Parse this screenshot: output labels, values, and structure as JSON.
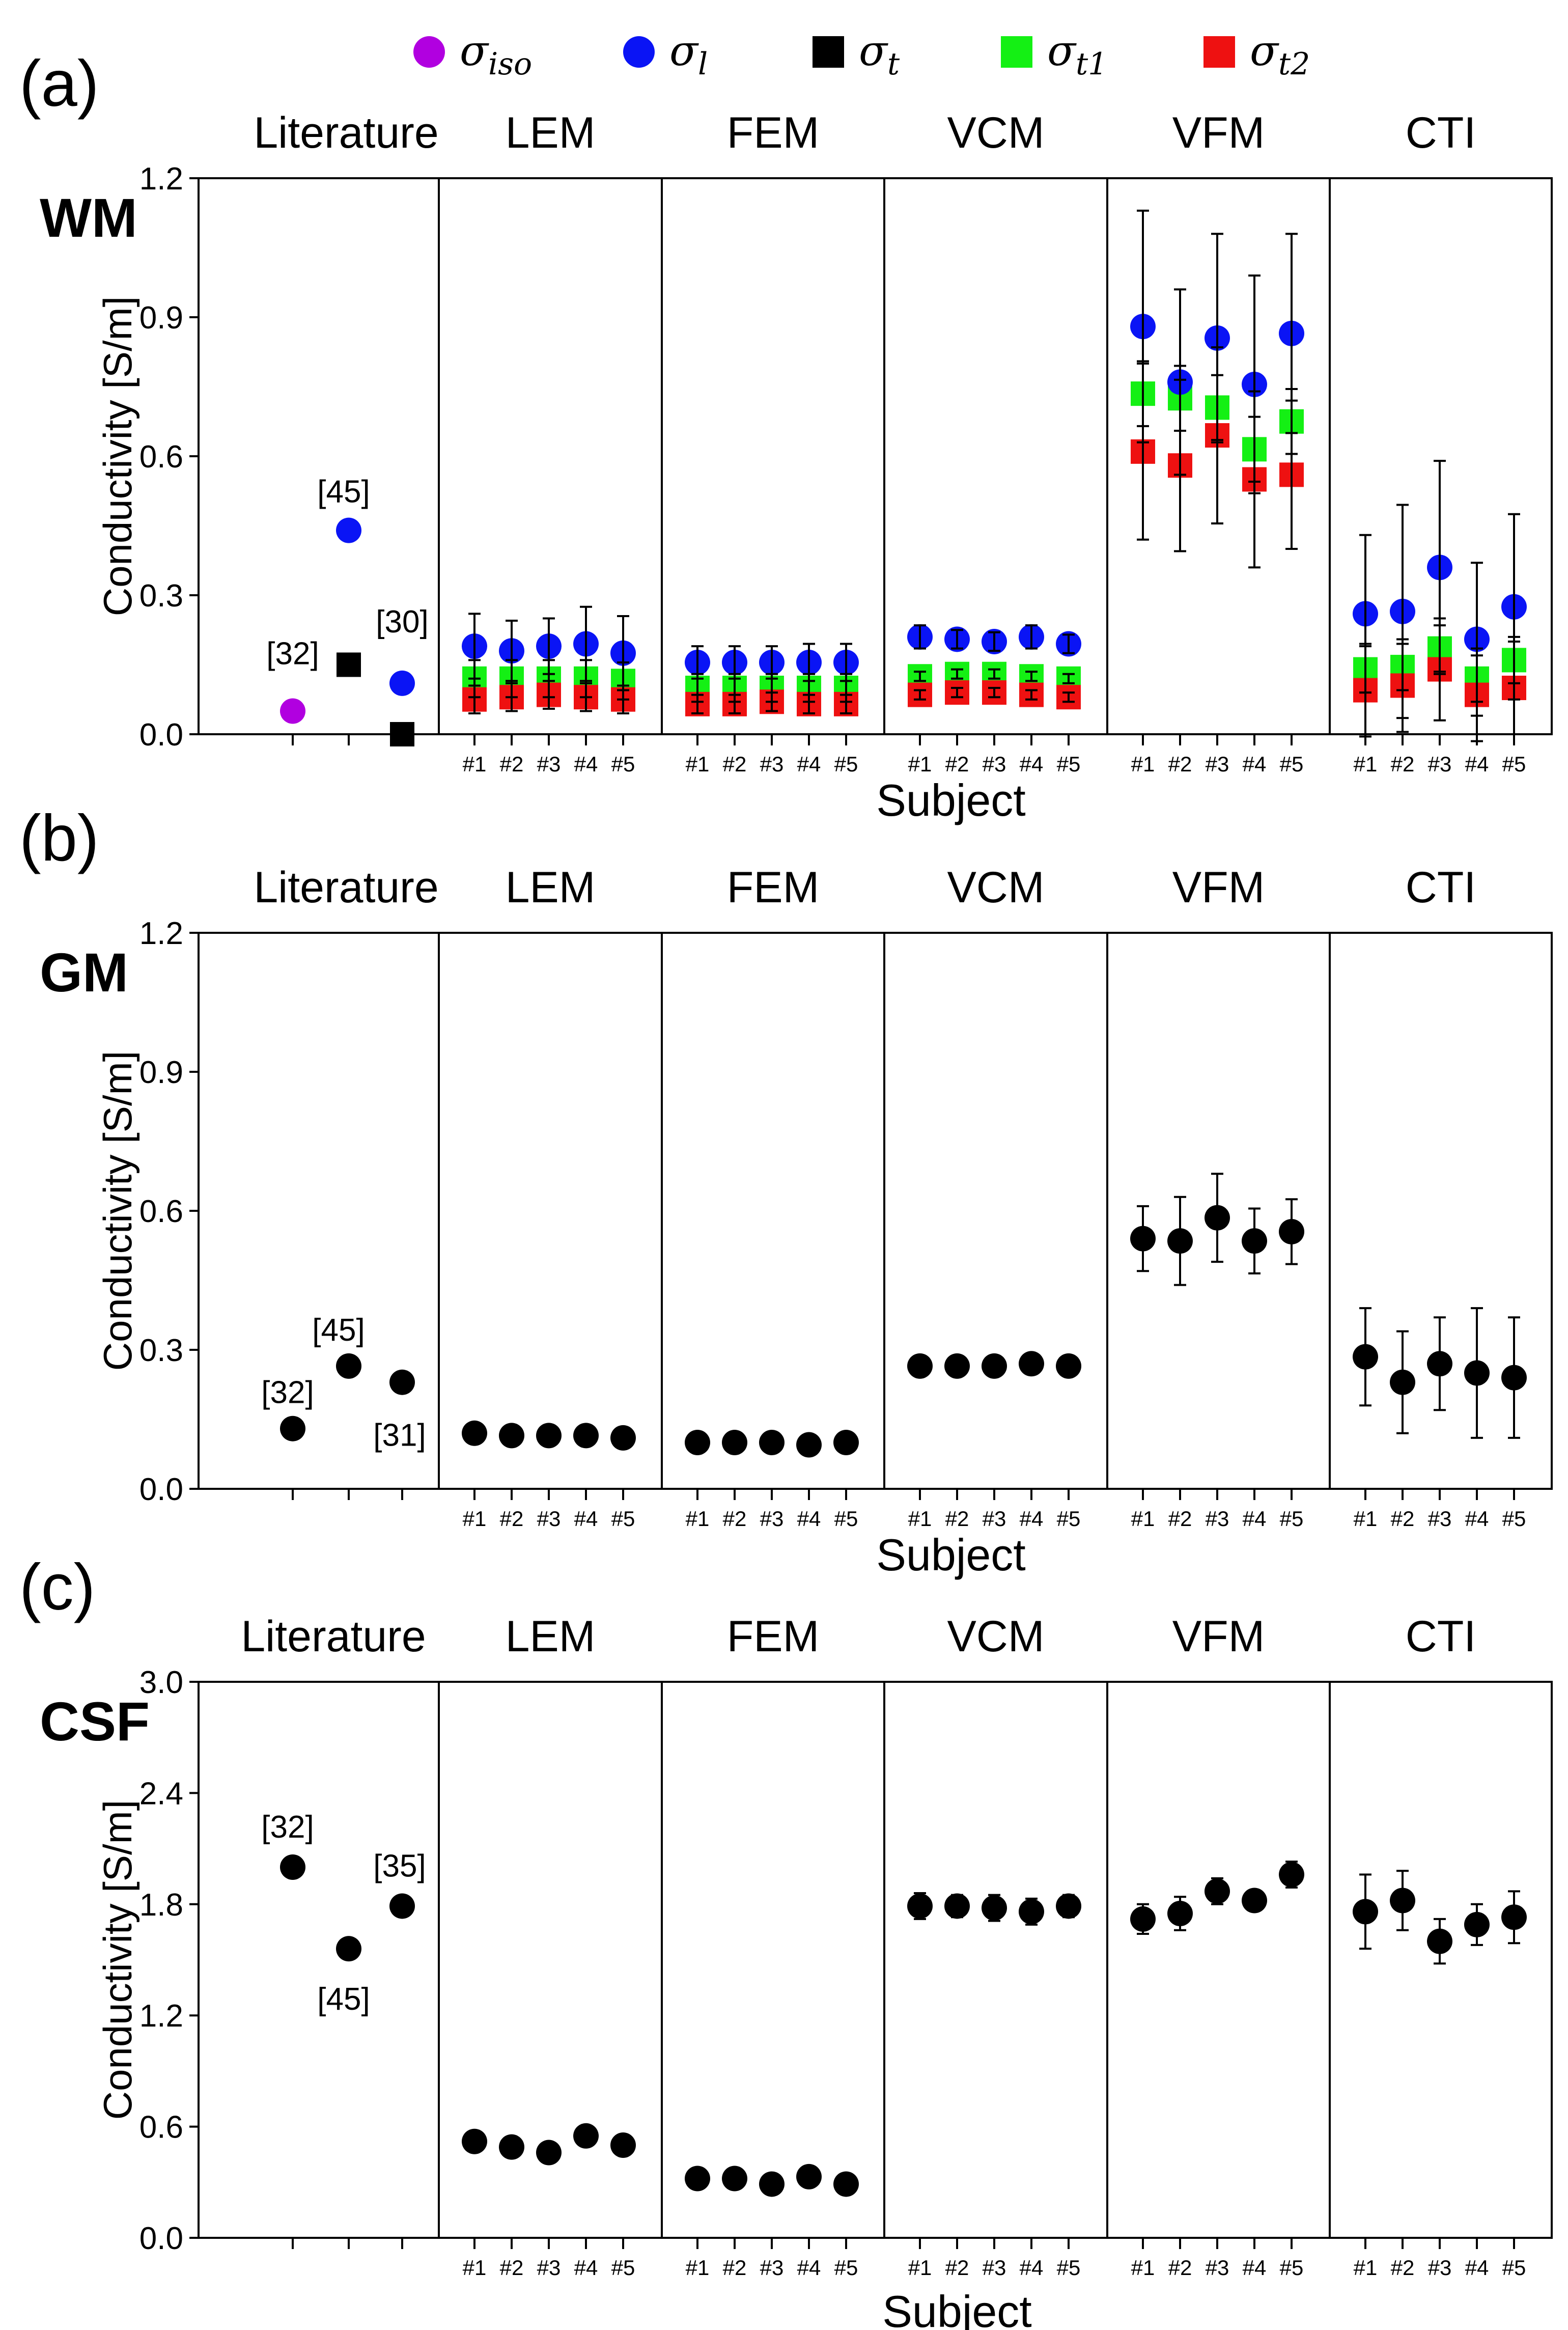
{
  "legend": {
    "entries": [
      {
        "symbol": "σ",
        "sub": "iso",
        "color": "#b100e0",
        "shape": "circle"
      },
      {
        "symbol": "σ",
        "sub": "l",
        "color": "#0a14f5",
        "shape": "circle"
      },
      {
        "symbol": "σ",
        "sub": "t",
        "color": "#000000",
        "shape": "square"
      },
      {
        "symbol": "σ",
        "sub": "t1",
        "color": "#14f014",
        "shape": "square"
      },
      {
        "symbol": "σ",
        "sub": "t2",
        "color": "#ee1111",
        "shape": "square"
      }
    ]
  },
  "panel_headers": [
    "Literature",
    "LEM",
    "FEM",
    "VCM",
    "VFM",
    "CTI"
  ],
  "subject_ticks": [
    "#1",
    "#2",
    "#3",
    "#4",
    "#5"
  ],
  "xlabel": "Subject",
  "chart_data": [
    {
      "type": "scatter",
      "panel_label": "(a)",
      "tissue": "WM",
      "ylabel": "Conductivity [S/m]",
      "ylim": [
        0,
        1.2
      ],
      "yticks": [
        "0.0",
        "0.3",
        "0.6",
        "0.9",
        "1.2"
      ],
      "literature": [
        {
          "ref": "[32]",
          "series": "σiso",
          "y": 0.05
        },
        {
          "ref": "[45]",
          "series": "σl",
          "y": 0.44
        },
        {
          "ref": "[45]",
          "series": "σt",
          "y": 0.15
        },
        {
          "ref": "[30]",
          "series": "σl",
          "y": 0.11
        },
        {
          "ref": "[30]",
          "series": "σt",
          "y": 0.0
        }
      ],
      "methods": {
        "LEM": {
          "σl": {
            "y": [
              0.19,
              0.18,
              0.19,
              0.195,
              0.175
            ],
            "err": [
              0.07,
              0.065,
              0.06,
              0.08,
              0.08
            ]
          },
          "σt1": {
            "y": [
              0.12,
              0.12,
              0.12,
              0.12,
              0.115
            ],
            "err": [
              0.04,
              0.04,
              0.04,
              0.04,
              0.04
            ]
          },
          "σt2": {
            "y": [
              0.075,
              0.08,
              0.085,
              0.08,
              0.075
            ],
            "err": [
              0.03,
              0.03,
              0.03,
              0.03,
              0.03
            ]
          }
        },
        "FEM": {
          "σl": {
            "y": [
              0.155,
              0.155,
              0.155,
              0.155,
              0.155
            ],
            "err": [
              0.035,
              0.035,
              0.035,
              0.04,
              0.04
            ]
          },
          "σt1": {
            "y": [
              0.1,
              0.1,
              0.1,
              0.1,
              0.1
            ],
            "err": [
              0.03,
              0.03,
              0.03,
              0.03,
              0.03
            ]
          },
          "σt2": {
            "y": [
              0.065,
              0.065,
              0.07,
              0.065,
              0.065
            ],
            "err": [
              0.02,
              0.02,
              0.02,
              0.02,
              0.02
            ]
          }
        },
        "VCM": {
          "σl": {
            "y": [
              0.21,
              0.205,
              0.2,
              0.21,
              0.195
            ],
            "err": [
              0.025,
              0.02,
              0.02,
              0.025,
              0.02
            ]
          },
          "σt1": {
            "y": [
              0.125,
              0.13,
              0.13,
              0.125,
              0.12
            ],
            "err": [
              0.01,
              0.01,
              0.01,
              0.01,
              0.01
            ]
          },
          "σt2": {
            "y": [
              0.085,
              0.09,
              0.09,
              0.085,
              0.08
            ],
            "err": [
              0.01,
              0.01,
              0.01,
              0.01,
              0.01
            ]
          }
        },
        "VFM": {
          "σl": {
            "y": [
              0.88,
              0.76,
              0.855,
              0.755,
              0.865
            ],
            "err": [
              0.25,
              0.2,
              0.225,
              0.235,
              0.215
            ]
          },
          "σt1": {
            "y": [
              0.735,
              0.725,
              0.705,
              0.615,
              0.675
            ],
            "err": [
              0.07,
              0.07,
              0.07,
              0.07,
              0.07
            ]
          },
          "σt2": {
            "y": [
              0.61,
              0.58,
              0.645,
              0.55,
              0.56
            ],
            "err": [
              0.19,
              0.185,
              0.19,
              0.19,
              0.16
            ]
          }
        },
        "CTI": {
          "σl": {
            "y": [
              0.26,
              0.265,
              0.36,
              0.205,
              0.275
            ],
            "err": [
              0.17,
              0.23,
              0.23,
              0.165,
              0.2
            ]
          },
          "σt1": {
            "y": [
              0.14,
              0.145,
              0.185,
              0.12,
              0.16
            ],
            "err": [
              0.05,
              0.05,
              0.05,
              0.05,
              0.05
            ]
          },
          "σt2": {
            "y": [
              0.095,
              0.105,
              0.14,
              0.085,
              0.1
            ],
            "err": [
              0.1,
              0.1,
              0.11,
              0.1,
              0.1
            ]
          }
        }
      }
    },
    {
      "type": "scatter",
      "panel_label": "(b)",
      "tissue": "GM",
      "ylabel": "Conductivity [S/m]",
      "ylim": [
        0,
        1.2
      ],
      "yticks": [
        "0.0",
        "0.3",
        "0.6",
        "0.9",
        "1.2"
      ],
      "literature": [
        {
          "ref": "[32]",
          "y": 0.13
        },
        {
          "ref": "[45]",
          "y": 0.265
        },
        {
          "ref": "[31]",
          "y": 0.23
        }
      ],
      "methods": {
        "LEM": {
          "y": [
            0.12,
            0.115,
            0.115,
            0.115,
            0.11
          ],
          "err": [
            0.01,
            0.01,
            0.01,
            0.01,
            0.01
          ]
        },
        "FEM": {
          "y": [
            0.1,
            0.1,
            0.1,
            0.095,
            0.1
          ],
          "err": [
            0.01,
            0.01,
            0.01,
            0.01,
            0.01
          ]
        },
        "VCM": {
          "y": [
            0.265,
            0.265,
            0.265,
            0.27,
            0.265
          ],
          "err": [
            0.01,
            0.01,
            0.01,
            0.01,
            0.01
          ]
        },
        "VFM": {
          "y": [
            0.54,
            0.535,
            0.585,
            0.535,
            0.555
          ],
          "err": [
            0.07,
            0.095,
            0.095,
            0.07,
            0.07
          ]
        },
        "CTI": {
          "y": [
            0.285,
            0.23,
            0.27,
            0.25,
            0.24
          ],
          "err": [
            0.105,
            0.11,
            0.1,
            0.14,
            0.13
          ]
        }
      }
    },
    {
      "type": "scatter",
      "panel_label": "(c)",
      "tissue": "CSF",
      "ylabel": "Conductivity [S/m]",
      "ylim": [
        0,
        3.0
      ],
      "yticks": [
        "0.0",
        "0.6",
        "1.2",
        "1.8",
        "2.4",
        "3.0"
      ],
      "literature": [
        {
          "ref": "[32]",
          "y": 2.0
        },
        {
          "ref": "[45]",
          "y": 1.56
        },
        {
          "ref": "[35]",
          "y": 1.79
        }
      ],
      "methods": {
        "LEM": {
          "y": [
            0.52,
            0.49,
            0.46,
            0.55,
            0.5
          ],
          "err": [
            0.02,
            0.02,
            0.02,
            0.02,
            0.02
          ]
        },
        "FEM": {
          "y": [
            0.32,
            0.32,
            0.29,
            0.33,
            0.29
          ],
          "err": [
            0.02,
            0.02,
            0.02,
            0.02,
            0.02
          ]
        },
        "VCM": {
          "y": [
            1.79,
            1.79,
            1.78,
            1.76,
            1.79
          ],
          "err": [
            0.07,
            0.06,
            0.07,
            0.07,
            0.06
          ]
        },
        "VFM": {
          "y": [
            1.72,
            1.75,
            1.87,
            1.82,
            1.96
          ],
          "err": [
            0.08,
            0.09,
            0.07,
            0.05,
            0.07
          ]
        },
        "CTI": {
          "y": [
            1.76,
            1.82,
            1.6,
            1.69,
            1.73
          ],
          "err": [
            0.2,
            0.16,
            0.12,
            0.11,
            0.14
          ]
        }
      }
    }
  ]
}
